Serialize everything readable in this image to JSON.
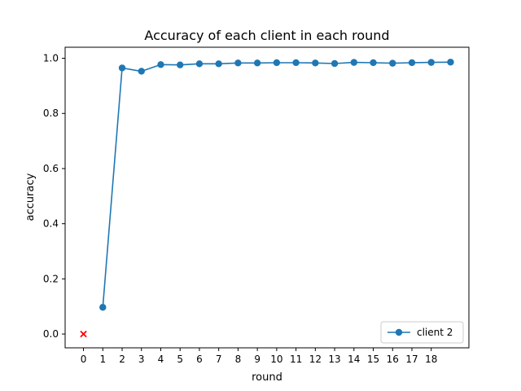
{
  "chart_data": {
    "type": "line",
    "title": "Accuracy of each client in each round",
    "xlabel": "round",
    "ylabel": "accuracy",
    "xlim": [
      -0.95,
      19.95
    ],
    "ylim": [
      -0.05,
      1.04
    ],
    "xticks": [
      0,
      1,
      2,
      3,
      4,
      5,
      6,
      7,
      8,
      9,
      10,
      11,
      12,
      13,
      14,
      15,
      16,
      17,
      18
    ],
    "yticks": [
      0.0,
      0.2,
      0.4,
      0.6,
      0.8,
      1.0
    ],
    "ytick_labels": [
      "0.0",
      "0.2",
      "0.4",
      "0.6",
      "0.8",
      "1.0"
    ],
    "grid": false,
    "legend_position": "lower-right",
    "series": [
      {
        "name": "client 2",
        "color": "#1f77b4",
        "marker": "circle",
        "x": [
          1,
          2,
          3,
          4,
          5,
          6,
          7,
          8,
          9,
          10,
          11,
          12,
          13,
          14,
          15,
          16,
          17,
          18,
          19
        ],
        "y": [
          0.097,
          0.965,
          0.953,
          0.977,
          0.976,
          0.98,
          0.98,
          0.983,
          0.983,
          0.984,
          0.984,
          0.983,
          0.981,
          0.985,
          0.984,
          0.982,
          0.984,
          0.985,
          0.986
        ]
      }
    ],
    "extra_points": [
      {
        "x": 0,
        "y": 0.0,
        "marker": "x",
        "color": "#ff0000"
      }
    ]
  }
}
